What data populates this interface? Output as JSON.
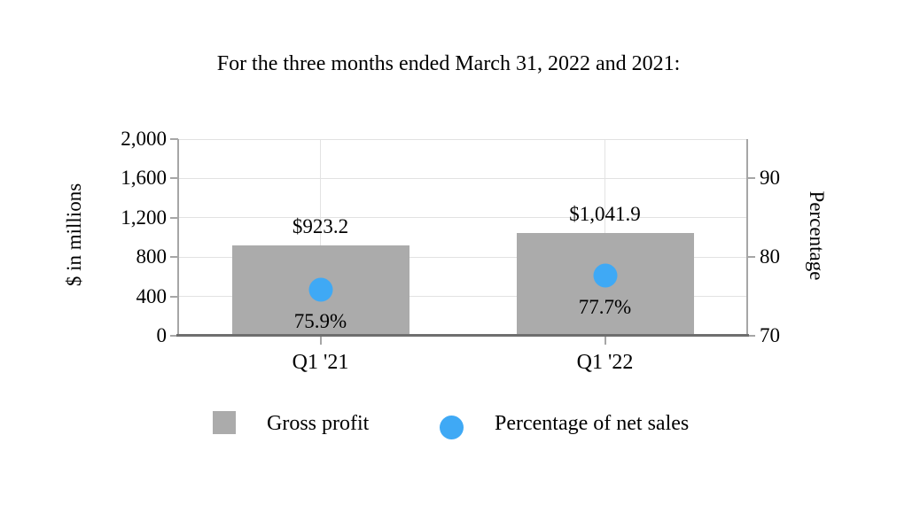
{
  "chart_data": {
    "type": "bar",
    "subtype": "bar-with-point-overlay",
    "title": "For the three months ended March 31, 2022 and 2021:",
    "categories": [
      "Q1 '21",
      "Q1 '22"
    ],
    "series": [
      {
        "name": "Gross profit",
        "type": "bar",
        "axis": "left",
        "color": "#ABABAB",
        "values": [
          923.2,
          1041.9
        ],
        "value_labels": [
          "$923.2",
          "$1,041.9"
        ]
      },
      {
        "name": "Percentage of net sales",
        "type": "point",
        "axis": "right",
        "color": "#3FA9F5",
        "values": [
          75.9,
          77.7
        ],
        "value_labels": [
          "75.9%",
          "77.7%"
        ]
      }
    ],
    "left_axis": {
      "title": "$ in millions",
      "min": 0,
      "max": 2000,
      "tick_step": 400,
      "ticks": [
        {
          "v": 0,
          "label": "0"
        },
        {
          "v": 400,
          "label": "400"
        },
        {
          "v": 800,
          "label": "800"
        },
        {
          "v": 1200,
          "label": "1,200"
        },
        {
          "v": 1600,
          "label": "1,600"
        },
        {
          "v": 2000,
          "label": "2,000"
        }
      ]
    },
    "right_axis": {
      "title": "Percentage",
      "min": 70,
      "max": 95,
      "tick_step": 10,
      "ticks": [
        {
          "v": 70,
          "label": "70"
        },
        {
          "v": 80,
          "label": "80"
        },
        {
          "v": 90,
          "label": "90"
        }
      ]
    },
    "grid": {
      "horizontal": true,
      "vertical_at_categories": true
    },
    "legend_position": "bottom",
    "legend": [
      {
        "label": "Gross profit",
        "marker": "square",
        "color": "#ABABAB"
      },
      {
        "label": "Percentage of net sales",
        "marker": "circle",
        "color": "#3FA9F5"
      }
    ],
    "colors": {
      "bar_fill": "#ABABAB",
      "point_fill": "#3FA9F5",
      "gridline": "#E2E2E2",
      "side_axis": "#A6A6A6",
      "bottom_axis": "#6E6E6E",
      "text": "#000000",
      "background": "#FFFFFF"
    }
  }
}
